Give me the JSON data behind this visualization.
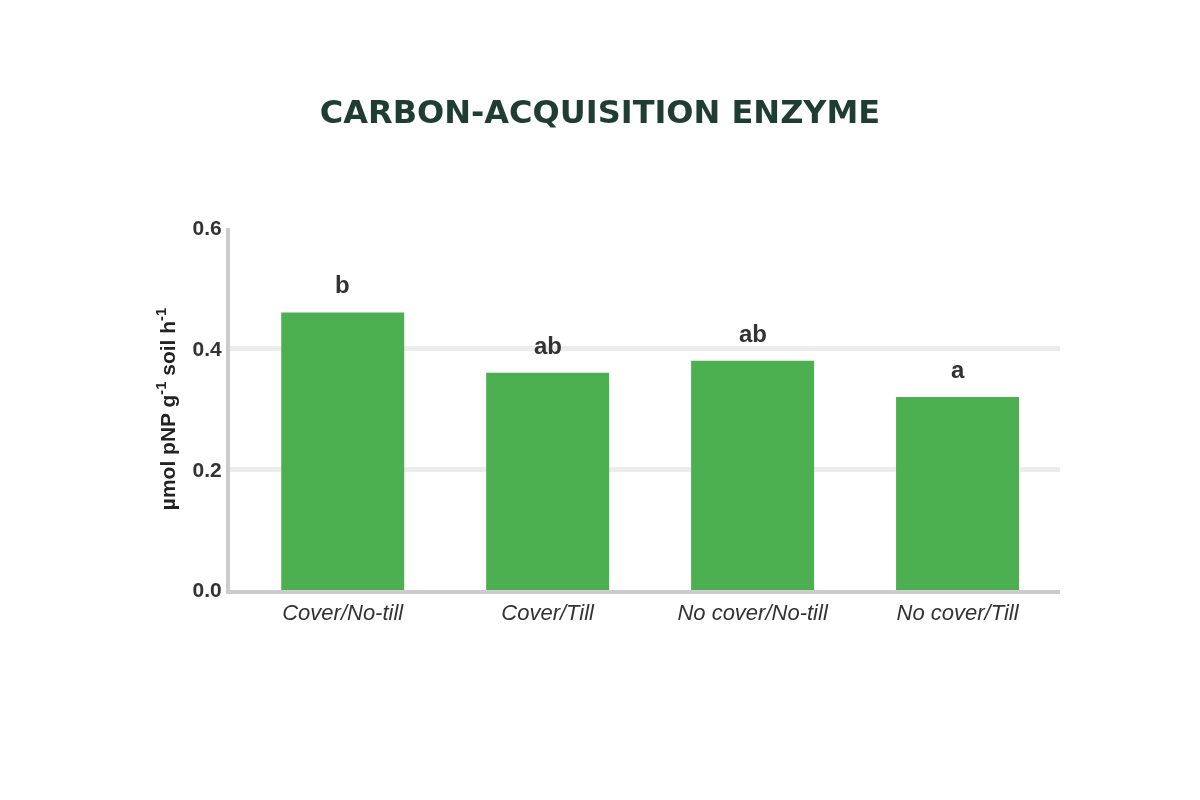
{
  "chart_data": {
    "type": "bar",
    "title": "CARBON-ACQUISITION ENZYME",
    "ylabel": "µmol pNP g$^{-1}$ soil h$^{-1}$",
    "categories": [
      "Cover/No-till",
      "Cover/Till",
      "No cover/No-till",
      "No cover/Till"
    ],
    "values": [
      0.46,
      0.36,
      0.38,
      0.32
    ],
    "color": "#4caf50",
    "ylim": [
      0,
      0.6
    ],
    "yticks": [
      {
        "value": 0,
        "label": "0.0"
      },
      {
        "value": 0.2,
        "label": "0.2"
      },
      {
        "value": 0.4,
        "label": "0.4"
      },
      {
        "value": 0.6,
        "label": "0.6"
      }
    ],
    "grid": "y",
    "annotations": [
      {
        "text": "b",
        "x": "Cover/No-till",
        "y": 0.46
      },
      {
        "text": "ab",
        "x": "Cover/Till",
        "y": 0.36
      },
      {
        "text": "ab",
        "x": "No cover/No-till",
        "y": 0.38
      },
      {
        "text": "a",
        "x": "No cover/Till",
        "y": 0.32
      }
    ]
  }
}
